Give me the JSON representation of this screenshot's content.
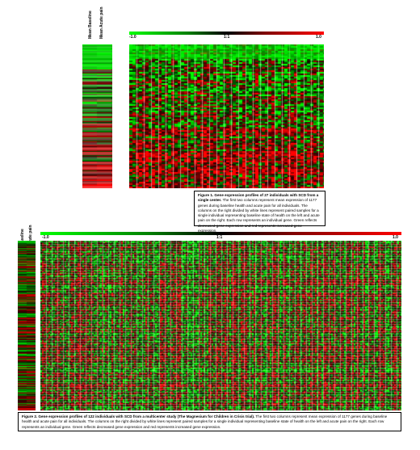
{
  "figure1": {
    "column_labels": [
      "Mean Baseline",
      "Mean Acute pain"
    ],
    "scale_ticks": [
      "-1.0",
      "1:1",
      "1.0"
    ],
    "caption_title": "Figure 1. Gene expression profiles of 27 individuals with SCD from a single center.",
    "caption_body": " The first two columns represent mean expression of 1177 genes during baseline health and acute pain for all individuals. The columns on the right divided by white lines represent paired samples for a single individual representing baseline state of health on the left and acute pain on the right. Each row represents an individual gene. Green reflects decreased gene expression and red represents increased gene expression."
  },
  "figure2": {
    "column_labels": [
      "Mean Baseline",
      "Mean Acute pain"
    ],
    "scale_ticks": [
      "-1.0",
      "1:1",
      "1.0"
    ],
    "caption_title": "Figure 2. Gene expression profiles of 122 individuals with SCD from a multicenter study (The Magnesium for Children in Crisis trial).",
    "caption_body": " The first two columns represent mean expression of 1177 genes during baseline health and acute pain for all individuals. The columns on the right divided by white lines represent paired samples for a single individual representing baseline state of health on the left and acute pain on the right. Each row represents an individual gene. Green reflects decreased gene expression and red represents increased gene expression."
  },
  "colors": {
    "decreased": "#00ff00",
    "neutral": "#000000",
    "increased": "#ff0000"
  }
}
